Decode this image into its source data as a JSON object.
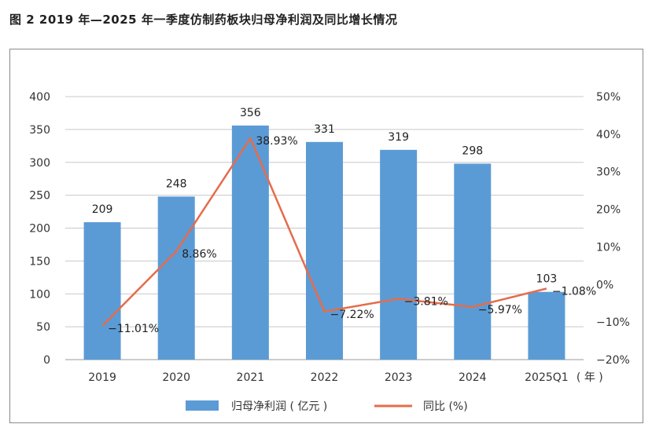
{
  "figure_title": "图 2   2019 年—2025 年一季度仿制药板块归母净利润及同比增长情况",
  "colors": {
    "bar": "#5b9bd5",
    "line": "#e46c4b",
    "grid": "#c8c8c8",
    "frame": "#8a8a8a"
  },
  "chart_data": {
    "type": "bar",
    "title": "",
    "categories": [
      "2019",
      "2020",
      "2021",
      "2022",
      "2023",
      "2024",
      "2025Q1"
    ],
    "x_unit_label": "( 年 )",
    "y_left": {
      "ylim": [
        0,
        400
      ],
      "ticks": [
        "0",
        "50",
        "100",
        "150",
        "200",
        "250",
        "300",
        "350",
        "400"
      ]
    },
    "y_right": {
      "ylim": [
        -20,
        50
      ],
      "ticks": [
        "−20%",
        "−10%",
        "0%",
        "10%",
        "20%",
        "30%",
        "40%",
        "50%"
      ]
    },
    "grid": true,
    "legend_position": "bottom",
    "series": [
      {
        "name": "归母净利润 ( 亿元 )",
        "type": "bar",
        "axis": "left",
        "values": [
          209,
          248,
          356,
          331,
          319,
          298,
          103
        ],
        "labels": [
          "209",
          "248",
          "356",
          "331",
          "319",
          "298",
          "103"
        ]
      },
      {
        "name": "同比 (%)",
        "type": "line",
        "axis": "right",
        "values": [
          -11.01,
          8.86,
          38.93,
          -7.22,
          -3.81,
          -5.97,
          -1.08
        ],
        "labels": [
          "−11.01%",
          "8.86%",
          "38.93%",
          "−7.22%",
          "−3.81%",
          "−5.97%",
          "−1.08%"
        ]
      }
    ]
  }
}
